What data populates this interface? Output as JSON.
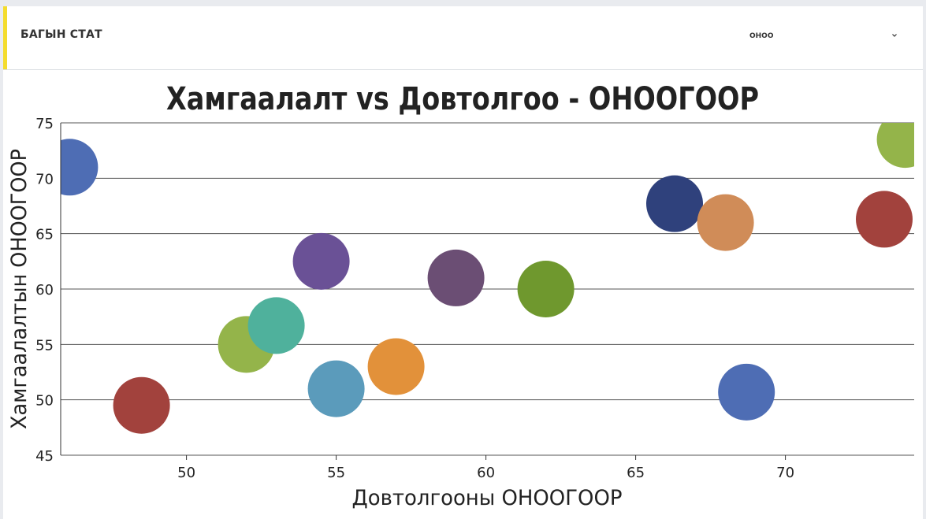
{
  "header": {
    "title": "БАГЫН СТАТ",
    "select_value": "ОНОО",
    "accent_color": "#f4dc2e"
  },
  "icons": {
    "dropdown": "chevron-down-icon"
  },
  "chart_data": {
    "type": "scatter",
    "title": "Хамгаалалт vs Довтолгоо - ОНООГООР",
    "xlabel": "Довтолгооны ОНООГООР",
    "ylabel": "Хамгаалалтын ОНООГООР",
    "xlim": [
      45.8,
      74.3
    ],
    "ylim": [
      45,
      75
    ],
    "xticks": [
      50,
      55,
      60,
      65,
      70
    ],
    "yticks": [
      45,
      50,
      55,
      60,
      65,
      70,
      75
    ],
    "grid": "horizontal",
    "legend": "none",
    "points": [
      {
        "x": 46.1,
        "y": 71.0,
        "color": "#4e6db4"
      },
      {
        "x": 48.5,
        "y": 49.5,
        "color": "#a2423d"
      },
      {
        "x": 52.0,
        "y": 55.0,
        "color": "#94b44a"
      },
      {
        "x": 53.0,
        "y": 56.7,
        "color": "#4fb19c"
      },
      {
        "x": 54.5,
        "y": 62.5,
        "color": "#6a5196"
      },
      {
        "x": 55.0,
        "y": 51.0,
        "color": "#5b9bbb"
      },
      {
        "x": 57.0,
        "y": 53.0,
        "color": "#e2913a"
      },
      {
        "x": 59.0,
        "y": 61.0,
        "color": "#6b4e74"
      },
      {
        "x": 62.0,
        "y": 60.0,
        "color": "#6f982e"
      },
      {
        "x": 66.3,
        "y": 67.7,
        "color": "#2f417c"
      },
      {
        "x": 68.0,
        "y": 66.0,
        "color": "#d08c58"
      },
      {
        "x": 68.7,
        "y": 50.7,
        "color": "#4e6db4"
      },
      {
        "x": 73.3,
        "y": 66.3,
        "color": "#a2423d"
      },
      {
        "x": 74.0,
        "y": 73.5,
        "color": "#94b44a"
      }
    ]
  }
}
